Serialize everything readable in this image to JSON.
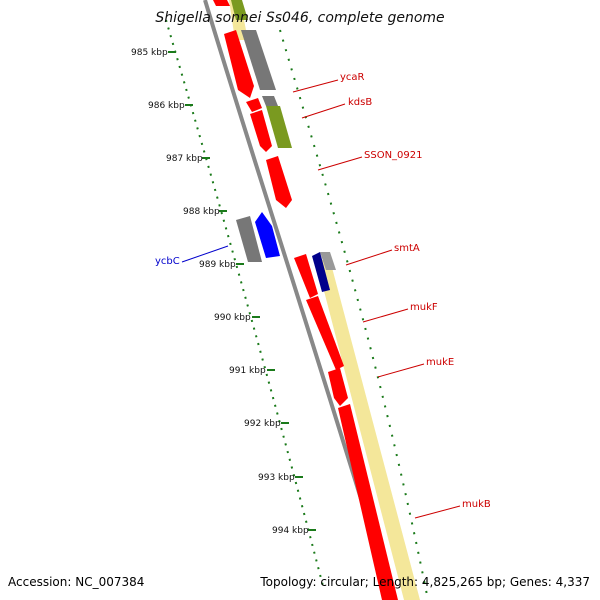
{
  "title": "Shigella sonnei Ss046, complete genome",
  "footer": {
    "accession": "Accession: NC_007384",
    "stats": "Topology: circular; Length: 4,825,265 bp; Genes: 4,337"
  },
  "scale_labels": [
    "985 kbp",
    "986 kbp",
    "987 kbp",
    "988 kbp",
    "989 kbp",
    "990 kbp",
    "991 kbp",
    "992 kbp",
    "993 kbp",
    "994 kbp"
  ],
  "gene_labels": {
    "ycaR": "ycaR",
    "kdsB": "kdsB",
    "SSON_0921": "SSON_0921",
    "smtA": "smtA",
    "mukF": "mukF",
    "mukE": "mukE",
    "mukB": "mukB",
    "ycbC": "ycbC"
  },
  "colors": {
    "cds": "#ff0000",
    "gene_label": "#cc0000",
    "reverse_gene": "#0000ff",
    "gray_feature": "#777777",
    "olive_feature": "#7a9a20",
    "yellow_feature": "#f4e79a",
    "tick_green": "#1a7a1a",
    "backbone": "#888888"
  }
}
